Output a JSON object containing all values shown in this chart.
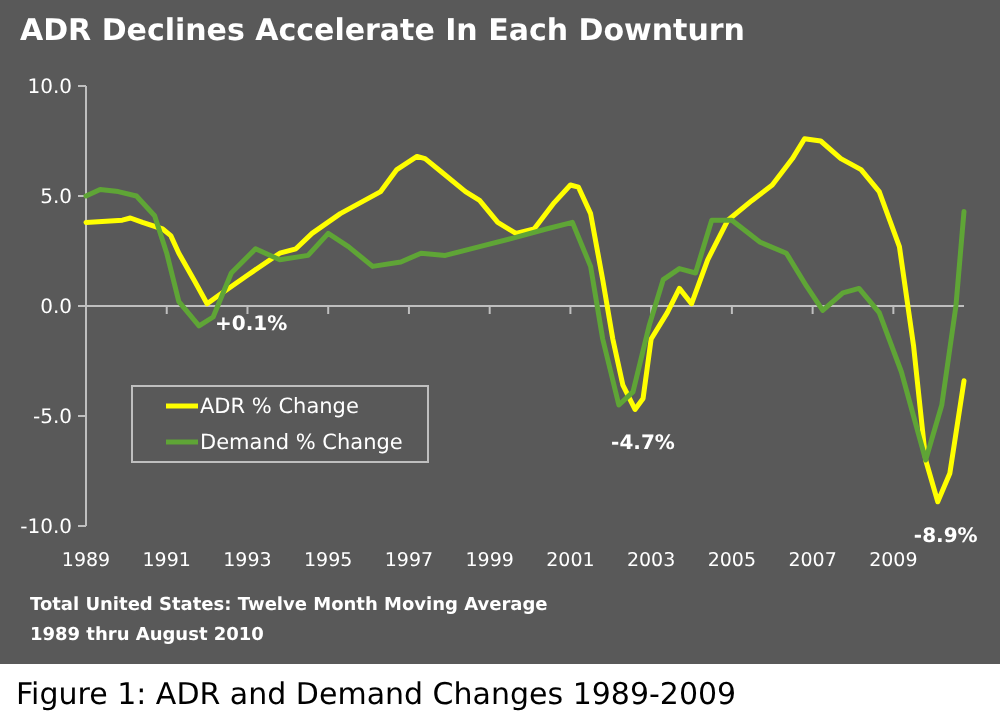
{
  "chart_data": {
    "type": "line",
    "title": "ADR Declines Accelerate In Each Downturn",
    "xlim": [
      1989,
      2010.75
    ],
    "xticks": [
      1989,
      1991,
      1993,
      1995,
      1997,
      1999,
      2001,
      2003,
      2005,
      2007,
      2009
    ],
    "ylim": [
      -10,
      10
    ],
    "yticks": [
      {
        "value": -10,
        "label": "-10.0"
      },
      {
        "value": -5,
        "label": "-5.0"
      },
      {
        "value": 0,
        "label": "0.0"
      },
      {
        "value": 5,
        "label": "5.0"
      },
      {
        "value": 10,
        "label": "10.0"
      }
    ],
    "ref_lines": [
      {
        "axis": "y",
        "value": 0,
        "color": "#bfbfbf"
      }
    ],
    "legend": "bottom left",
    "line_style": "solid",
    "marker": "none",
    "series": [
      {
        "name": "ADR % Change",
        "color": "#ffff00",
        "x": [
          1989.0,
          1989.9,
          1990.1,
          1990.4,
          1990.9,
          1991.1,
          1991.3,
          1991.7,
          1992.0,
          1992.3,
          1993.0,
          1993.8,
          1994.2,
          1994.6,
          1995.3,
          1995.8,
          1996.3,
          1996.7,
          1997.2,
          1997.4,
          1997.8,
          1998.4,
          1998.75,
          1999.2,
          1999.65,
          2000.1,
          2000.6,
          2001.0,
          2001.2,
          2001.5,
          2001.8,
          2002.05,
          2002.3,
          2002.6,
          2002.8,
          2003.0,
          2003.4,
          2003.7,
          2004.0,
          2004.4,
          2004.9,
          2005.5,
          2006.0,
          2006.5,
          2006.8,
          2007.2,
          2007.7,
          2008.2,
          2008.65,
          2009.15,
          2009.5,
          2009.8,
          2010.1,
          2010.4,
          2010.75
        ],
        "values": [
          3.8,
          3.9,
          4.0,
          3.8,
          3.5,
          3.2,
          2.4,
          1.1,
          0.1,
          0.5,
          1.4,
          2.4,
          2.6,
          3.3,
          4.2,
          4.7,
          5.2,
          6.2,
          6.8,
          6.7,
          6.1,
          5.2,
          4.8,
          3.8,
          3.3,
          3.5,
          4.7,
          5.5,
          5.4,
          4.2,
          1.2,
          -1.5,
          -3.6,
          -4.7,
          -4.2,
          -1.5,
          -0.3,
          0.8,
          0.1,
          2.1,
          3.9,
          4.8,
          5.5,
          6.7,
          7.6,
          7.5,
          6.7,
          6.2,
          5.2,
          2.7,
          -1.8,
          -7.0,
          -8.9,
          -7.6,
          -3.4
        ]
      },
      {
        "name": "Demand % Change",
        "color": "#5fa536",
        "x": [
          1989.0,
          1989.35,
          1989.8,
          1990.25,
          1990.7,
          1991.0,
          1991.3,
          1991.8,
          1992.15,
          1992.6,
          1993.2,
          1993.8,
          1994.5,
          1995.0,
          1995.5,
          1996.1,
          1996.8,
          1997.3,
          1997.9,
          1998.75,
          1999.6,
          2000.4,
          2001.05,
          2001.5,
          2001.8,
          2002.2,
          2002.55,
          2002.95,
          2003.3,
          2003.7,
          2004.1,
          2004.5,
          2005.0,
          2005.7,
          2006.35,
          2006.85,
          2007.25,
          2007.75,
          2008.15,
          2008.65,
          2009.2,
          2009.8,
          2010.2,
          2010.55,
          2010.75
        ],
        "values": [
          5.0,
          5.3,
          5.2,
          5.0,
          4.1,
          2.4,
          0.2,
          -0.9,
          -0.5,
          1.5,
          2.6,
          2.1,
          2.3,
          3.3,
          2.7,
          1.8,
          2.0,
          2.4,
          2.3,
          2.7,
          3.1,
          3.5,
          3.8,
          1.8,
          -1.5,
          -4.5,
          -3.9,
          -0.9,
          1.2,
          1.7,
          1.5,
          3.9,
          3.9,
          2.9,
          2.4,
          0.9,
          -0.2,
          0.6,
          0.8,
          -0.3,
          -3.0,
          -7.0,
          -4.5,
          0.0,
          4.3
        ]
      }
    ],
    "annotations": [
      {
        "text": "+0.1%",
        "x": 1992.0,
        "y": 0.1
      },
      {
        "text": "-4.7%",
        "x": 2002.6,
        "y": -4.7
      },
      {
        "text": "-8.9%",
        "x": 2010.1,
        "y": -8.9
      },
      "Total United States: Twelve Month Moving Average",
      "1989 thru August 2010",
      "Figure 1: ADR and Demand Changes 1989-2009"
    ]
  }
}
